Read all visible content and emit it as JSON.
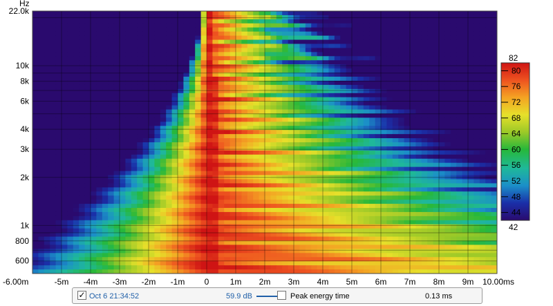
{
  "chart_data": {
    "type": "heatmap",
    "title": "",
    "xlabel": "",
    "ylabel": "Hz",
    "x_unit": "ms",
    "xlim": [
      -6.0,
      10.0
    ],
    "ylim": [
      500,
      22000
    ],
    "y_scale": "log",
    "x_ticks": [
      {
        "value": -6,
        "label": "-6.00m"
      },
      {
        "value": -5,
        "label": "-5m"
      },
      {
        "value": -4,
        "label": "-4m"
      },
      {
        "value": -3,
        "label": "-3m"
      },
      {
        "value": -2,
        "label": "-2m"
      },
      {
        "value": -1,
        "label": "-1m"
      },
      {
        "value": 0,
        "label": "0"
      },
      {
        "value": 1,
        "label": "1m"
      },
      {
        "value": 2,
        "label": "2m"
      },
      {
        "value": 3,
        "label": "3m"
      },
      {
        "value": 4,
        "label": "4m"
      },
      {
        "value": 5,
        "label": "5m"
      },
      {
        "value": 6,
        "label": "6m"
      },
      {
        "value": 7,
        "label": "7m"
      },
      {
        "value": 8,
        "label": "8m"
      },
      {
        "value": 9,
        "label": "9m"
      },
      {
        "value": 10,
        "label": "10.00ms"
      }
    ],
    "y_ticks": [
      {
        "value": 600,
        "label": "600"
      },
      {
        "value": 800,
        "label": "800"
      },
      {
        "value": 1000,
        "label": "1k"
      },
      {
        "value": 2000,
        "label": "2k"
      },
      {
        "value": 3000,
        "label": "3k"
      },
      {
        "value": 4000,
        "label": "4k"
      },
      {
        "value": 6000,
        "label": "6k"
      },
      {
        "value": 8000,
        "label": "8k"
      },
      {
        "value": 10000,
        "label": "10k"
      },
      {
        "value": 22000,
        "label": "22.0k"
      }
    ],
    "grid": true,
    "colorscale": {
      "min": 42,
      "max": 82,
      "ticks": [
        80,
        76,
        72,
        68,
        64,
        60,
        56,
        52,
        48,
        44
      ],
      "min_label": "42",
      "max_label": "82",
      "colors": [
        "#2a0a6e",
        "#1a2fa8",
        "#1b8fc8",
        "#1fb89a",
        "#27b83a",
        "#9cc928",
        "#e6e02a",
        "#f4a323",
        "#ee5320",
        "#cf1414"
      ]
    },
    "description_of_field": {
      "peak_energy_time_ms": 0.13,
      "direct_sound_ridge_ms": 0.1
    }
  },
  "legend": {
    "checkbox_checked": "✓",
    "measurement_name": "Oct 6 21:34:52",
    "series_color": "#1f5fa8",
    "level": "59.9 dB",
    "peak_checkbox_checked": "",
    "peak_label": "Peak energy time",
    "peak_value": "0.13 ms"
  }
}
